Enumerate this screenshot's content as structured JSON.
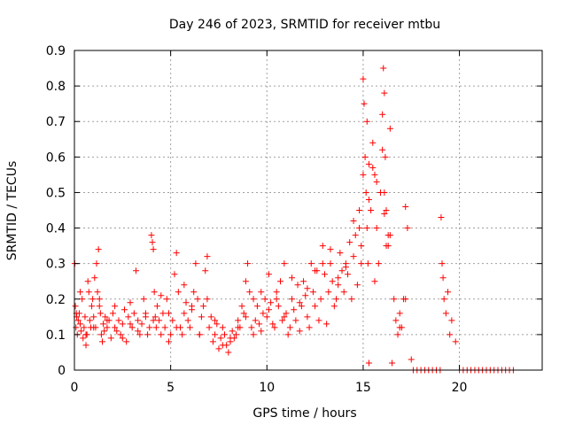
{
  "chart_data": {
    "type": "scatter",
    "title": "Day 246 of 2023, SRMTID for receiver mtbu",
    "xlabel": "GPS time / hours",
    "ylabel": "SRMTID / TECUs",
    "xlim": [
      0,
      24.3
    ],
    "ylim": [
      0,
      0.9
    ],
    "xticks": [
      {
        "value": 0,
        "label": "0"
      },
      {
        "value": 5,
        "label": "5"
      },
      {
        "value": 10,
        "label": "10"
      },
      {
        "value": 15,
        "label": "15"
      },
      {
        "value": 20,
        "label": "20"
      }
    ],
    "yticks": [
      {
        "value": 0,
        "label": "0"
      },
      {
        "value": 0.1,
        "label": "0.1"
      },
      {
        "value": 0.2,
        "label": "0.2"
      },
      {
        "value": 0.3,
        "label": "0.3"
      },
      {
        "value": 0.4,
        "label": "0.4"
      },
      {
        "value": 0.5,
        "label": "0.5"
      },
      {
        "value": 0.6,
        "label": "0.6"
      },
      {
        "value": 0.7,
        "label": "0.7"
      },
      {
        "value": 0.8,
        "label": "0.8"
      },
      {
        "value": 0.9,
        "label": "0.9"
      }
    ],
    "grid": true,
    "marker": "+",
    "color": "#ff0000",
    "series": [
      {
        "name": "SRMTID",
        "x": [
          0.02,
          0.05,
          0.08,
          0.12,
          0.15,
          0.2,
          0.25,
          0.3,
          0.35,
          0.4,
          0.45,
          0.5,
          0.55,
          0.6,
          0.65,
          0.7,
          0.75,
          0.8,
          0.85,
          0.9,
          0.95,
          1.0,
          1.05,
          1.1,
          1.15,
          1.2,
          1.25,
          1.3,
          1.35,
          1.4,
          1.45,
          1.5,
          1.55,
          1.6,
          1.7,
          1.8,
          1.9,
          2.0,
          2.1,
          2.2,
          2.3,
          2.4,
          2.5,
          2.6,
          2.7,
          2.8,
          2.9,
          3.0,
          3.1,
          3.2,
          3.3,
          3.4,
          3.5,
          3.6,
          3.7,
          3.8,
          3.9,
          4.0,
          4.05,
          4.1,
          4.15,
          4.2,
          4.25,
          4.3,
          4.4,
          4.5,
          4.6,
          4.7,
          4.8,
          4.9,
          5.0,
          5.1,
          5.2,
          5.3,
          5.4,
          5.5,
          5.6,
          5.7,
          5.8,
          5.9,
          6.0,
          6.1,
          6.2,
          6.3,
          6.4,
          6.5,
          6.6,
          6.7,
          6.8,
          6.9,
          7.0,
          7.1,
          7.2,
          7.3,
          7.4,
          7.5,
          7.6,
          7.7,
          7.8,
          7.9,
          8.0,
          8.1,
          8.2,
          8.3,
          8.4,
          8.5,
          8.6,
          8.7,
          8.8,
          8.9,
          9.0,
          9.1,
          9.2,
          9.3,
          9.4,
          9.5,
          9.6,
          9.7,
          9.8,
          9.9,
          10.0,
          10.1,
          10.2,
          10.3,
          10.4,
          10.5,
          10.6,
          10.7,
          10.8,
          10.9,
          11.0,
          11.1,
          11.2,
          11.3,
          11.4,
          11.5,
          11.6,
          11.7,
          11.8,
          11.9,
          12.0,
          12.1,
          12.2,
          12.3,
          12.4,
          12.5,
          12.6,
          12.7,
          12.8,
          12.9,
          13.0,
          13.1,
          13.2,
          13.3,
          13.4,
          13.5,
          13.6,
          13.7,
          13.8,
          13.9,
          14.0,
          14.1,
          14.2,
          14.3,
          14.4,
          14.5,
          14.6,
          14.7,
          14.8,
          14.9,
          15.0,
          15.05,
          15.1,
          15.15,
          15.2,
          15.25,
          15.3,
          15.4,
          15.5,
          15.6,
          15.7,
          15.8,
          15.9,
          16.0,
          16.05,
          16.1,
          16.15,
          16.2,
          16.3,
          16.4,
          16.5,
          16.6,
          16.7,
          16.8,
          16.9,
          17.0,
          17.1,
          17.2,
          17.3,
          17.5,
          17.6,
          17.8,
          18.0,
          18.2,
          18.4,
          18.6,
          18.8,
          19.0,
          19.05,
          19.1,
          19.15,
          19.2,
          19.3,
          19.4,
          19.5,
          19.6,
          19.8,
          20.0,
          20.2,
          20.4,
          20.6,
          20.8,
          21.0,
          21.2,
          21.4,
          21.6,
          21.8,
          22.0,
          22.2,
          22.4,
          22.6,
          22.8,
          0.1,
          0.3,
          0.6,
          1.0,
          1.3,
          1.7,
          2.1,
          2.5,
          2.9,
          3.3,
          3.7,
          4.1,
          4.5,
          4.9,
          5.3,
          5.7,
          6.1,
          6.5,
          6.9,
          7.3,
          7.7,
          8.1,
          8.5,
          8.9,
          9.3,
          9.7,
          10.1,
          10.5,
          10.9,
          11.3,
          11.7,
          12.1,
          12.5,
          12.9,
          13.3,
          13.7,
          14.1,
          14.5,
          14.9,
          15.3,
          15.7,
          16.1,
          16.4,
          16.9,
          17.2,
          15.2,
          15.3,
          16.0,
          16.1,
          16.2,
          15.6,
          15.5,
          16.3,
          14.8,
          15.0
        ],
        "y": [
          0.3,
          0.18,
          0.12,
          0.15,
          0.1,
          0.14,
          0.16,
          0.13,
          0.11,
          0.2,
          0.09,
          0.12,
          0.15,
          0.07,
          0.1,
          0.25,
          0.22,
          0.14,
          0.12,
          0.18,
          0.2,
          0.15,
          0.26,
          0.12,
          0.3,
          0.22,
          0.34,
          0.18,
          0.16,
          0.1,
          0.08,
          0.13,
          0.11,
          0.15,
          0.12,
          0.14,
          0.09,
          0.16,
          0.12,
          0.11,
          0.14,
          0.1,
          0.13,
          0.17,
          0.08,
          0.15,
          0.19,
          0.12,
          0.16,
          0.28,
          0.14,
          0.1,
          0.13,
          0.2,
          0.15,
          0.1,
          0.12,
          0.38,
          0.36,
          0.34,
          0.22,
          0.15,
          0.12,
          0.18,
          0.14,
          0.1,
          0.16,
          0.12,
          0.2,
          0.08,
          0.1,
          0.14,
          0.27,
          0.33,
          0.22,
          0.12,
          0.1,
          0.16,
          0.19,
          0.14,
          0.12,
          0.17,
          0.22,
          0.3,
          0.2,
          0.1,
          0.15,
          0.18,
          0.28,
          0.32,
          0.12,
          0.15,
          0.08,
          0.1,
          0.13,
          0.06,
          0.09,
          0.12,
          0.1,
          0.07,
          0.05,
          0.08,
          0.11,
          0.09,
          0.1,
          0.14,
          0.12,
          0.18,
          0.16,
          0.25,
          0.3,
          0.22,
          0.12,
          0.1,
          0.14,
          0.18,
          0.13,
          0.11,
          0.16,
          0.2,
          0.15,
          0.27,
          0.19,
          0.13,
          0.12,
          0.22,
          0.18,
          0.25,
          0.14,
          0.3,
          0.16,
          0.1,
          0.12,
          0.2,
          0.17,
          0.14,
          0.24,
          0.11,
          0.18,
          0.25,
          0.21,
          0.15,
          0.12,
          0.3,
          0.22,
          0.18,
          0.28,
          0.14,
          0.2,
          0.35,
          0.27,
          0.13,
          0.22,
          0.3,
          0.25,
          0.18,
          0.2,
          0.24,
          0.33,
          0.28,
          0.22,
          0.3,
          0.27,
          0.36,
          0.2,
          0.32,
          0.38,
          0.24,
          0.4,
          0.3,
          0.82,
          0.75,
          0.6,
          0.5,
          0.4,
          0.3,
          0.02,
          0.45,
          0.64,
          0.55,
          0.4,
          0.3,
          0.5,
          0.72,
          0.85,
          0.78,
          0.6,
          0.45,
          0.35,
          0.68,
          0.02,
          0.2,
          0.14,
          0.1,
          0.16,
          0.12,
          0.2,
          0.46,
          0.4,
          0.03,
          0.0,
          0.0,
          0.0,
          0.0,
          0.0,
          0.0,
          0.0,
          0.0,
          0.43,
          0.3,
          0.26,
          0.2,
          0.16,
          0.22,
          0.1,
          0.14,
          0.08,
          0.0,
          0.0,
          0.0,
          0.0,
          0.0,
          0.0,
          0.0,
          0.0,
          0.0,
          0.0,
          0.0,
          0.0,
          0.0,
          0.0,
          0.0,
          0.16,
          0.22,
          0.1,
          0.12,
          0.2,
          0.14,
          0.18,
          0.09,
          0.13,
          0.11,
          0.16,
          0.14,
          0.21,
          0.16,
          0.12,
          0.24,
          0.18,
          0.1,
          0.2,
          0.14,
          0.07,
          0.09,
          0.12,
          0.15,
          0.2,
          0.22,
          0.17,
          0.2,
          0.15,
          0.26,
          0.19,
          0.23,
          0.28,
          0.3,
          0.34,
          0.26,
          0.29,
          0.42,
          0.35,
          0.48,
          0.53,
          0.44,
          0.38,
          0.12,
          0.2,
          0.7,
          0.58,
          0.62,
          0.5,
          0.35,
          0.25,
          0.57,
          0.38,
          0.45,
          0.55
        ]
      }
    ]
  }
}
